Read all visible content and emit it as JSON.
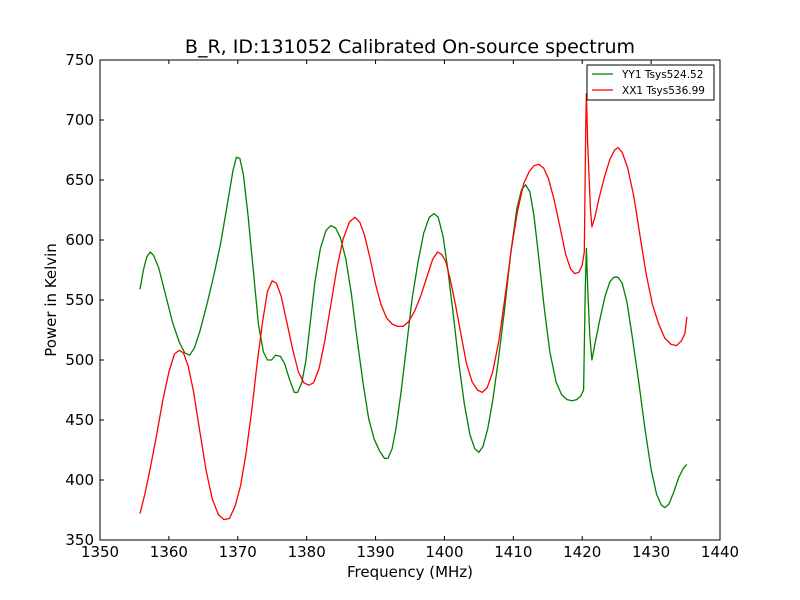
{
  "chart_data": {
    "type": "line",
    "title": "B_R, ID:131052 Calibrated On-source spectrum",
    "xlabel": "Frequency (MHz)",
    "ylabel": "Power in Kelvin",
    "xlim": [
      1350,
      1440
    ],
    "ylim": [
      350,
      750
    ],
    "xticks": [
      "1350",
      "1360",
      "1370",
      "1380",
      "1390",
      "1400",
      "1410",
      "1420",
      "1430",
      "1440"
    ],
    "yticks": [
      "350",
      "400",
      "450",
      "500",
      "550",
      "600",
      "650",
      "700",
      "750"
    ],
    "grid": false,
    "legend_position": "top-right",
    "series": [
      {
        "name": "YY1 Tsys524.52",
        "color": "#008000",
        "points": [
          [
            1355.8,
            559
          ],
          [
            1356.3,
            575
          ],
          [
            1356.8,
            586
          ],
          [
            1357.3,
            590
          ],
          [
            1357.8,
            587
          ],
          [
            1358.5,
            577
          ],
          [
            1359.5,
            555
          ],
          [
            1360.5,
            532
          ],
          [
            1361.5,
            515
          ],
          [
            1362.3,
            506
          ],
          [
            1363.0,
            504
          ],
          [
            1363.7,
            510
          ],
          [
            1364.5,
            524
          ],
          [
            1365.5,
            546
          ],
          [
            1366.5,
            570
          ],
          [
            1367.5,
            597
          ],
          [
            1368.5,
            630
          ],
          [
            1369.3,
            658
          ],
          [
            1369.8,
            669
          ],
          [
            1370.3,
            668
          ],
          [
            1370.8,
            655
          ],
          [
            1371.5,
            620
          ],
          [
            1372.3,
            572
          ],
          [
            1373.0,
            530
          ],
          [
            1373.7,
            507
          ],
          [
            1374.3,
            500
          ],
          [
            1374.9,
            500
          ],
          [
            1375.5,
            504
          ],
          [
            1376.2,
            503
          ],
          [
            1376.8,
            497
          ],
          [
            1377.5,
            484
          ],
          [
            1378.2,
            473
          ],
          [
            1378.7,
            473
          ],
          [
            1379.3,
            481
          ],
          [
            1379.9,
            500
          ],
          [
            1380.5,
            530
          ],
          [
            1381.2,
            565
          ],
          [
            1382.0,
            593
          ],
          [
            1382.8,
            608
          ],
          [
            1383.5,
            612
          ],
          [
            1384.2,
            610
          ],
          [
            1384.9,
            602
          ],
          [
            1385.7,
            584
          ],
          [
            1386.5,
            555
          ],
          [
            1387.3,
            518
          ],
          [
            1388.2,
            480
          ],
          [
            1389.0,
            451
          ],
          [
            1389.8,
            434
          ],
          [
            1390.6,
            424
          ],
          [
            1391.3,
            418
          ],
          [
            1391.8,
            418
          ],
          [
            1392.4,
            426
          ],
          [
            1393.0,
            444
          ],
          [
            1393.7,
            473
          ],
          [
            1394.5,
            512
          ],
          [
            1395.3,
            551
          ],
          [
            1396.2,
            583
          ],
          [
            1397.0,
            606
          ],
          [
            1397.8,
            619
          ],
          [
            1398.5,
            622
          ],
          [
            1399.1,
            619
          ],
          [
            1399.8,
            603
          ],
          [
            1400.5,
            575
          ],
          [
            1401.3,
            537
          ],
          [
            1402.1,
            497
          ],
          [
            1402.9,
            463
          ],
          [
            1403.7,
            438
          ],
          [
            1404.4,
            426
          ],
          [
            1405.0,
            423
          ],
          [
            1405.6,
            428
          ],
          [
            1406.3,
            443
          ],
          [
            1407.0,
            466
          ],
          [
            1407.8,
            499
          ],
          [
            1408.7,
            541
          ],
          [
            1409.6,
            588
          ],
          [
            1410.5,
            626
          ],
          [
            1411.2,
            642
          ],
          [
            1411.8,
            646
          ],
          [
            1412.4,
            640
          ],
          [
            1413.0,
            620
          ],
          [
            1413.7,
            585
          ],
          [
            1414.5,
            543
          ],
          [
            1415.3,
            507
          ],
          [
            1416.2,
            482
          ],
          [
            1417.0,
            471
          ],
          [
            1417.8,
            467
          ],
          [
            1418.5,
            466
          ],
          [
            1419.2,
            467
          ],
          [
            1419.8,
            470
          ],
          [
            1420.2,
            475
          ],
          [
            1420.45,
            560
          ],
          [
            1420.6,
            593
          ],
          [
            1420.8,
            560
          ],
          [
            1421.1,
            520
          ],
          [
            1421.4,
            500
          ],
          [
            1421.8,
            512
          ],
          [
            1422.5,
            532
          ],
          [
            1423.3,
            553
          ],
          [
            1424.0,
            565
          ],
          [
            1424.6,
            569
          ],
          [
            1425.2,
            569
          ],
          [
            1425.8,
            564
          ],
          [
            1426.5,
            548
          ],
          [
            1427.3,
            518
          ],
          [
            1428.2,
            482
          ],
          [
            1429.1,
            443
          ],
          [
            1430.0,
            409
          ],
          [
            1430.8,
            388
          ],
          [
            1431.5,
            379
          ],
          [
            1432.0,
            377
          ],
          [
            1432.6,
            380
          ],
          [
            1433.3,
            390
          ],
          [
            1434.0,
            402
          ],
          [
            1434.7,
            410
          ],
          [
            1435.2,
            413
          ]
        ]
      },
      {
        "name": "XX1 Tsys536.99",
        "color": "#ff0000",
        "points": [
          [
            1355.8,
            372
          ],
          [
            1356.5,
            388
          ],
          [
            1357.3,
            410
          ],
          [
            1358.2,
            437
          ],
          [
            1359.1,
            466
          ],
          [
            1360.0,
            490
          ],
          [
            1360.8,
            505
          ],
          [
            1361.5,
            508
          ],
          [
            1362.1,
            506
          ],
          [
            1362.8,
            495
          ],
          [
            1363.6,
            473
          ],
          [
            1364.5,
            440
          ],
          [
            1365.4,
            408
          ],
          [
            1366.3,
            384
          ],
          [
            1367.2,
            371
          ],
          [
            1368.0,
            367
          ],
          [
            1368.8,
            368
          ],
          [
            1369.6,
            378
          ],
          [
            1370.4,
            395
          ],
          [
            1371.2,
            422
          ],
          [
            1372.0,
            457
          ],
          [
            1372.8,
            497
          ],
          [
            1373.6,
            532
          ],
          [
            1374.3,
            557
          ],
          [
            1375.0,
            566
          ],
          [
            1375.6,
            564
          ],
          [
            1376.3,
            553
          ],
          [
            1377.1,
            532
          ],
          [
            1378.0,
            508
          ],
          [
            1378.8,
            490
          ],
          [
            1379.6,
            481
          ],
          [
            1380.3,
            479
          ],
          [
            1381.0,
            481
          ],
          [
            1381.8,
            493
          ],
          [
            1382.6,
            515
          ],
          [
            1383.5,
            546
          ],
          [
            1384.4,
            577
          ],
          [
            1385.3,
            601
          ],
          [
            1386.2,
            615
          ],
          [
            1387.0,
            619
          ],
          [
            1387.7,
            615
          ],
          [
            1388.4,
            604
          ],
          [
            1389.2,
            585
          ],
          [
            1390.0,
            563
          ],
          [
            1390.8,
            546
          ],
          [
            1391.6,
            535
          ],
          [
            1392.4,
            530
          ],
          [
            1393.2,
            528
          ],
          [
            1394.0,
            528
          ],
          [
            1394.8,
            532
          ],
          [
            1395.7,
            541
          ],
          [
            1396.6,
            554
          ],
          [
            1397.5,
            570
          ],
          [
            1398.3,
            584
          ],
          [
            1399.0,
            590
          ],
          [
            1399.6,
            588
          ],
          [
            1400.2,
            582
          ],
          [
            1400.8,
            568
          ],
          [
            1401.6,
            546
          ],
          [
            1402.4,
            521
          ],
          [
            1403.2,
            497
          ],
          [
            1404.0,
            482
          ],
          [
            1404.8,
            475
          ],
          [
            1405.5,
            473
          ],
          [
            1406.2,
            477
          ],
          [
            1407.0,
            490
          ],
          [
            1407.9,
            516
          ],
          [
            1408.8,
            553
          ],
          [
            1409.7,
            592
          ],
          [
            1410.6,
            624
          ],
          [
            1411.5,
            647
          ],
          [
            1412.3,
            657
          ],
          [
            1413.0,
            662
          ],
          [
            1413.7,
            663
          ],
          [
            1414.4,
            660
          ],
          [
            1415.1,
            651
          ],
          [
            1415.9,
            634
          ],
          [
            1416.8,
            610
          ],
          [
            1417.6,
            588
          ],
          [
            1418.3,
            576
          ],
          [
            1418.9,
            572
          ],
          [
            1419.5,
            573
          ],
          [
            1420.0,
            579
          ],
          [
            1420.3,
            590
          ],
          [
            1420.5,
            690
          ],
          [
            1420.6,
            722
          ],
          [
            1420.8,
            680
          ],
          [
            1421.2,
            625
          ],
          [
            1421.4,
            611
          ],
          [
            1421.8,
            618
          ],
          [
            1422.4,
            634
          ],
          [
            1423.2,
            652
          ],
          [
            1424.0,
            667
          ],
          [
            1424.7,
            675
          ],
          [
            1425.2,
            677
          ],
          [
            1425.8,
            673
          ],
          [
            1426.6,
            660
          ],
          [
            1427.5,
            636
          ],
          [
            1428.4,
            603
          ],
          [
            1429.3,
            571
          ],
          [
            1430.2,
            546
          ],
          [
            1431.1,
            530
          ],
          [
            1432.0,
            518
          ],
          [
            1432.9,
            513
          ],
          [
            1433.7,
            512
          ],
          [
            1434.4,
            516
          ],
          [
            1434.9,
            522
          ],
          [
            1435.2,
            536
          ]
        ]
      }
    ]
  }
}
